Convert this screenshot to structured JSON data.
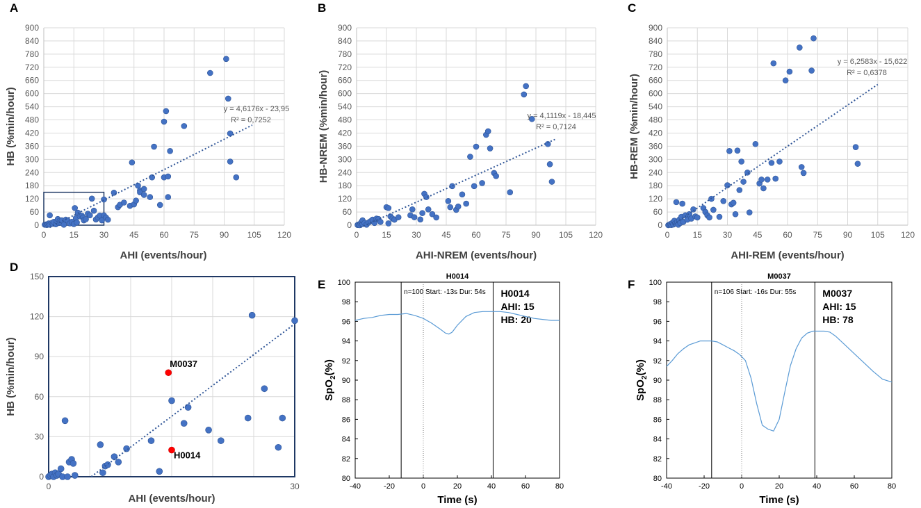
{
  "chart_data": [
    {
      "id": "A",
      "type": "scatter",
      "panel_letter": "A",
      "xlabel": "AHI (events/hour)",
      "ylabel": "HB (%min/hour)",
      "xlim": [
        0,
        120
      ],
      "ylim": [
        0,
        900
      ],
      "xticks": [
        0,
        15,
        30,
        45,
        60,
        75,
        90,
        105,
        120
      ],
      "yticks": [
        0,
        60,
        120,
        180,
        240,
        300,
        360,
        420,
        480,
        540,
        600,
        660,
        720,
        780,
        840,
        900
      ],
      "xtick_labels": [
        "0",
        "15",
        "30",
        "45",
        "60",
        "75",
        "90",
        "105",
        "120"
      ],
      "ytick_labels": [
        "0",
        "60",
        "120",
        "180",
        "240",
        "300",
        "360",
        "420",
        "480",
        "540",
        "600",
        "660",
        "720",
        "780",
        "840",
        "900"
      ],
      "trendline": {
        "slope": 4.6176,
        "intercept": -23.95,
        "x_range": [
          3,
          104
        ]
      },
      "equation": "y = 4,6176x - 23,95",
      "r2": "R² = 0,7252",
      "inset_box": {
        "x": [
          0,
          30
        ],
        "y": [
          0,
          150
        ]
      },
      "points": [
        [
          0.5,
          2
        ],
        [
          1,
          3
        ],
        [
          1.5,
          1
        ],
        [
          2,
          5
        ],
        [
          2.5,
          8
        ],
        [
          3,
          2
        ],
        [
          3,
          45
        ],
        [
          4,
          10
        ],
        [
          4.5,
          6
        ],
        [
          5,
          15
        ],
        [
          6,
          4
        ],
        [
          6.5,
          18
        ],
        [
          7,
          28
        ],
        [
          7.5,
          10
        ],
        [
          8,
          20
        ],
        [
          8.5,
          12
        ],
        [
          9,
          22
        ],
        [
          10,
          2
        ],
        [
          11,
          25
        ],
        [
          12,
          20
        ],
        [
          13,
          8
        ],
        [
          14,
          15
        ],
        [
          15,
          5
        ],
        [
          15.5,
          78
        ],
        [
          16,
          32
        ],
        [
          16.5,
          12
        ],
        [
          17,
          57
        ],
        [
          18,
          40
        ],
        [
          19,
          43
        ],
        [
          19.5,
          35
        ],
        [
          20,
          22
        ],
        [
          21,
          27
        ],
        [
          22,
          52
        ],
        [
          23,
          45
        ],
        [
          24,
          121
        ],
        [
          25,
          66
        ],
        [
          26,
          26
        ],
        [
          27,
          35
        ],
        [
          28,
          44
        ],
        [
          29,
          22
        ],
        [
          30,
          117
        ],
        [
          30,
          45
        ],
        [
          31,
          35
        ],
        [
          32,
          25
        ],
        [
          35,
          148
        ],
        [
          37,
          82
        ],
        [
          38,
          93
        ],
        [
          40,
          103
        ],
        [
          43,
          88
        ],
        [
          44,
          286
        ],
        [
          45,
          95
        ],
        [
          46,
          112
        ],
        [
          47,
          180
        ],
        [
          48,
          158
        ],
        [
          48,
          150
        ],
        [
          50,
          138
        ],
        [
          50,
          165
        ],
        [
          53,
          128
        ],
        [
          54,
          218
        ],
        [
          55,
          358
        ],
        [
          58,
          92
        ],
        [
          60,
          218
        ],
        [
          60,
          472
        ],
        [
          61,
          520
        ],
        [
          62,
          222
        ],
        [
          62,
          128
        ],
        [
          63,
          338
        ],
        [
          70,
          452
        ],
        [
          83,
          694
        ],
        [
          91,
          758
        ],
        [
          92,
          577
        ],
        [
          93,
          418
        ],
        [
          93,
          290
        ],
        [
          96,
          218
        ]
      ]
    },
    {
      "id": "B",
      "type": "scatter",
      "panel_letter": "B",
      "xlabel": "AHI-NREM (events/hour)",
      "ylabel": "HB-NREM (%min/hour)",
      "xlim": [
        0,
        120
      ],
      "ylim": [
        0,
        900
      ],
      "xticks": [
        0,
        15,
        30,
        45,
        60,
        75,
        90,
        105,
        120
      ],
      "yticks": [
        0,
        60,
        120,
        180,
        240,
        300,
        360,
        420,
        480,
        540,
        600,
        660,
        720,
        780,
        840,
        900
      ],
      "xtick_labels": [
        "0",
        "15",
        "30",
        "45",
        "60",
        "75",
        "90",
        "105",
        "120"
      ],
      "ytick_labels": [
        "0",
        "60",
        "120",
        "180",
        "240",
        "300",
        "360",
        "420",
        "480",
        "540",
        "600",
        "660",
        "720",
        "780",
        "840",
        "900"
      ],
      "trendline": {
        "slope": 4.1119,
        "intercept": -18.445,
        "x_range": [
          2,
          100
        ]
      },
      "equation": "y = 4,1119x - 18,445",
      "r2": "R² = 0,7124",
      "points": [
        [
          0.5,
          1
        ],
        [
          1,
          3
        ],
        [
          1.5,
          0
        ],
        [
          2,
          8
        ],
        [
          2.5,
          15
        ],
        [
          3,
          5
        ],
        [
          3,
          22
        ],
        [
          4,
          10
        ],
        [
          5,
          2
        ],
        [
          6,
          12
        ],
        [
          7,
          18
        ],
        [
          8,
          25
        ],
        [
          9,
          10
        ],
        [
          10,
          30
        ],
        [
          11,
          28
        ],
        [
          12,
          15
        ],
        [
          15,
          82
        ],
        [
          16,
          78
        ],
        [
          16,
          8
        ],
        [
          17,
          40
        ],
        [
          18,
          30
        ],
        [
          19,
          25
        ],
        [
          21,
          36
        ],
        [
          27,
          45
        ],
        [
          28,
          72
        ],
        [
          29,
          36
        ],
        [
          32,
          26
        ],
        [
          33,
          55
        ],
        [
          34,
          143
        ],
        [
          35,
          128
        ],
        [
          36,
          72
        ],
        [
          38,
          50
        ],
        [
          40,
          35
        ],
        [
          46,
          110
        ],
        [
          47,
          82
        ],
        [
          48,
          178
        ],
        [
          50,
          70
        ],
        [
          51,
          85
        ],
        [
          53,
          140
        ],
        [
          55,
          98
        ],
        [
          57,
          312
        ],
        [
          59,
          178
        ],
        [
          60,
          358
        ],
        [
          63,
          192
        ],
        [
          65,
          412
        ],
        [
          66,
          428
        ],
        [
          67,
          350
        ],
        [
          69,
          238
        ],
        [
          70,
          224
        ],
        [
          77,
          150
        ],
        [
          84,
          596
        ],
        [
          85,
          634
        ],
        [
          88,
          484
        ],
        [
          96,
          370
        ],
        [
          97,
          278
        ],
        [
          98,
          198
        ]
      ]
    },
    {
      "id": "C",
      "type": "scatter",
      "panel_letter": "C",
      "xlabel": "AHI-REM (events/hour)",
      "ylabel": "HB-REM (%min/hour)",
      "xlim": [
        0,
        120
      ],
      "ylim": [
        0,
        900
      ],
      "xticks": [
        0,
        15,
        30,
        45,
        60,
        75,
        90,
        105,
        120
      ],
      "yticks": [
        0,
        60,
        120,
        180,
        240,
        300,
        360,
        420,
        480,
        540,
        600,
        660,
        720,
        780,
        840,
        900
      ],
      "xtick_labels": [
        "0",
        "15",
        "30",
        "45",
        "60",
        "75",
        "90",
        "105",
        "120"
      ],
      "ytick_labels": [
        "0",
        "60",
        "120",
        "180",
        "240",
        "300",
        "360",
        "420",
        "480",
        "540",
        "600",
        "660",
        "720",
        "780",
        "840",
        "900"
      ],
      "trendline": {
        "slope": 6.2583,
        "intercept": -15.622,
        "x_range": [
          3,
          105
        ]
      },
      "equation": "y = 6,2583x - 15,622",
      "r2": "R² = 0,6378",
      "points": [
        [
          0.5,
          0
        ],
        [
          1,
          2
        ],
        [
          1.5,
          5
        ],
        [
          2,
          1
        ],
        [
          2.5,
          10
        ],
        [
          3,
          3
        ],
        [
          3.5,
          20
        ],
        [
          4,
          8
        ],
        [
          4.5,
          105
        ],
        [
          5,
          15
        ],
        [
          5.5,
          2
        ],
        [
          6,
          25
        ],
        [
          6.5,
          10
        ],
        [
          7,
          38
        ],
        [
          7.5,
          98
        ],
        [
          8,
          15
        ],
        [
          9,
          45
        ],
        [
          10,
          25
        ],
        [
          11,
          50
        ],
        [
          12,
          30
        ],
        [
          13,
          72
        ],
        [
          14,
          40
        ],
        [
          15,
          35
        ],
        [
          18,
          78
        ],
        [
          19,
          60
        ],
        [
          20,
          45
        ],
        [
          21,
          35
        ],
        [
          22,
          120
        ],
        [
          23,
          70
        ],
        [
          26,
          38
        ],
        [
          28,
          110
        ],
        [
          30,
          182
        ],
        [
          31,
          338
        ],
        [
          32,
          95
        ],
        [
          33,
          102
        ],
        [
          34,
          50
        ],
        [
          35,
          340
        ],
        [
          36,
          160
        ],
        [
          37,
          290
        ],
        [
          38,
          198
        ],
        [
          40,
          240
        ],
        [
          41,
          58
        ],
        [
          44,
          370
        ],
        [
          46,
          190
        ],
        [
          47,
          208
        ],
        [
          48,
          168
        ],
        [
          50,
          208
        ],
        [
          52,
          284
        ],
        [
          53,
          738
        ],
        [
          54,
          212
        ],
        [
          56,
          290
        ],
        [
          59,
          660
        ],
        [
          61,
          700
        ],
        [
          66,
          810
        ],
        [
          67,
          265
        ],
        [
          68,
          238
        ],
        [
          72,
          705
        ],
        [
          73,
          852
        ],
        [
          94,
          356
        ],
        [
          95,
          280
        ]
      ]
    },
    {
      "id": "D",
      "type": "scatter",
      "panel_letter": "D",
      "xlabel": "AHI (events/hour)",
      "ylabel": "HB (%min/hour)",
      "xlim": [
        0,
        30
      ],
      "ylim": [
        0,
        150
      ],
      "xticks": [
        0,
        30
      ],
      "yticks": [
        0,
        30,
        60,
        90,
        120,
        150
      ],
      "xtick_labels": [
        "0",
        "30"
      ],
      "ytick_labels": [
        "0",
        "30",
        "60",
        "90",
        "120",
        "150"
      ],
      "trendline": {
        "slope": 4.6176,
        "intercept": -23.95,
        "x_range": [
          5.2,
          30
        ]
      },
      "highlighted": [
        {
          "label": "M0037",
          "x": 14.6,
          "y": 78
        },
        {
          "label": "H0014",
          "x": 15.0,
          "y": 20
        }
      ],
      "points": [
        [
          0,
          0
        ],
        [
          0.2,
          1
        ],
        [
          0.4,
          2
        ],
        [
          0.6,
          0
        ],
        [
          0.8,
          3
        ],
        [
          1,
          1
        ],
        [
          1.2,
          2
        ],
        [
          1.5,
          6
        ],
        [
          1.7,
          0
        ],
        [
          2,
          42
        ],
        [
          2.3,
          0
        ],
        [
          2.5,
          11
        ],
        [
          2.8,
          13
        ],
        [
          3,
          10
        ],
        [
          3.2,
          1
        ],
        [
          6.3,
          24
        ],
        [
          6.6,
          3
        ],
        [
          6.9,
          8
        ],
        [
          7.2,
          9
        ],
        [
          8,
          15
        ],
        [
          8.5,
          11
        ],
        [
          9.5,
          21
        ],
        [
          12.5,
          27
        ],
        [
          13.5,
          4
        ],
        [
          15,
          57
        ],
        [
          16.5,
          40
        ],
        [
          17,
          52
        ],
        [
          19.5,
          35
        ],
        [
          21,
          27
        ],
        [
          24.3,
          44
        ],
        [
          24.8,
          121
        ],
        [
          26.3,
          66
        ],
        [
          28,
          22
        ],
        [
          28.5,
          44
        ],
        [
          30,
          117
        ]
      ]
    },
    {
      "id": "E",
      "type": "line",
      "panel_letter": "E",
      "title": "H0014",
      "xlabel": "Time (s)",
      "ylabel_prefix": "SpO",
      "ylabel_sub": "2",
      "ylabel_suffix": "(%)",
      "xlim": [
        -40,
        80
      ],
      "ylim": [
        80,
        100
      ],
      "xticks": [
        -40,
        -20,
        0,
        20,
        40,
        60,
        80
      ],
      "yticks": [
        80,
        82,
        84,
        86,
        88,
        90,
        92,
        94,
        96,
        98,
        100
      ],
      "xtick_labels": [
        "-40",
        "-20",
        "0",
        "20",
        "40",
        "60",
        "80"
      ],
      "ytick_labels": [
        "80",
        "82",
        "84",
        "86",
        "88",
        "90",
        "92",
        "94",
        "96",
        "98",
        "100"
      ],
      "event_start": -13,
      "event_end": 41,
      "event_ref": 0,
      "annotation": "n=100  Start: -13s Dur: 54s",
      "info_lines": [
        "H0014",
        "AHI: 15",
        "HB: 20"
      ],
      "x": [
        -40,
        -35,
        -30,
        -25,
        -20,
        -15,
        -10,
        -5,
        0,
        5,
        10,
        13,
        15,
        17,
        20,
        25,
        30,
        35,
        40,
        45,
        50,
        55,
        60,
        65,
        70,
        75,
        80
      ],
      "y": [
        96.1,
        96.3,
        96.4,
        96.6,
        96.7,
        96.7,
        96.8,
        96.6,
        96.3,
        95.8,
        95.2,
        94.8,
        94.7,
        94.9,
        95.6,
        96.5,
        96.9,
        97.0,
        97.0,
        97.0,
        96.9,
        96.7,
        96.5,
        96.3,
        96.2,
        96.1,
        96.1
      ]
    },
    {
      "id": "F",
      "type": "line",
      "panel_letter": "F",
      "title": "M0037",
      "xlabel": "Time (s)",
      "ylabel_prefix": "SpO",
      "ylabel_sub": "2",
      "ylabel_suffix": "(%)",
      "xlim": [
        -40,
        80
      ],
      "ylim": [
        80,
        100
      ],
      "xticks": [
        -40,
        -20,
        0,
        20,
        40,
        60,
        80
      ],
      "yticks": [
        80,
        82,
        84,
        86,
        88,
        90,
        92,
        94,
        96,
        98,
        100
      ],
      "xtick_labels": [
        "-40",
        "-20",
        "0",
        "20",
        "40",
        "60",
        "80"
      ],
      "ytick_labels": [
        "80",
        "82",
        "84",
        "86",
        "88",
        "90",
        "92",
        "94",
        "96",
        "98",
        "100"
      ],
      "event_start": -16,
      "event_end": 39,
      "event_ref": 0,
      "annotation": "n=106  Start: -16s Dur: 55s",
      "info_lines": [
        "M0037",
        "AHI: 15",
        "HB: 78"
      ],
      "x": [
        -40,
        -37,
        -34,
        -31,
        -28,
        -25,
        -22,
        -19,
        -16,
        -13,
        -10,
        -7,
        -4,
        -1,
        2,
        5,
        8,
        11,
        14,
        17,
        20,
        23,
        26,
        29,
        32,
        35,
        38,
        41,
        44,
        47,
        50,
        55,
        60,
        65,
        70,
        75,
        80
      ],
      "y": [
        91.4,
        92.0,
        92.7,
        93.2,
        93.6,
        93.8,
        94.0,
        94.0,
        94.0,
        93.9,
        93.6,
        93.3,
        93.0,
        92.6,
        92.0,
        90.2,
        87.6,
        85.4,
        85.0,
        84.8,
        86.0,
        88.8,
        91.5,
        93.2,
        94.3,
        94.8,
        95.0,
        95.0,
        95.0,
        94.9,
        94.5,
        93.6,
        92.7,
        91.8,
        90.9,
        90.1,
        89.8
      ]
    }
  ],
  "colors": {
    "point": "#4472c4",
    "highlight": "#ff0000",
    "trend": "#2f5597",
    "spo2": "#5b9bd5"
  }
}
